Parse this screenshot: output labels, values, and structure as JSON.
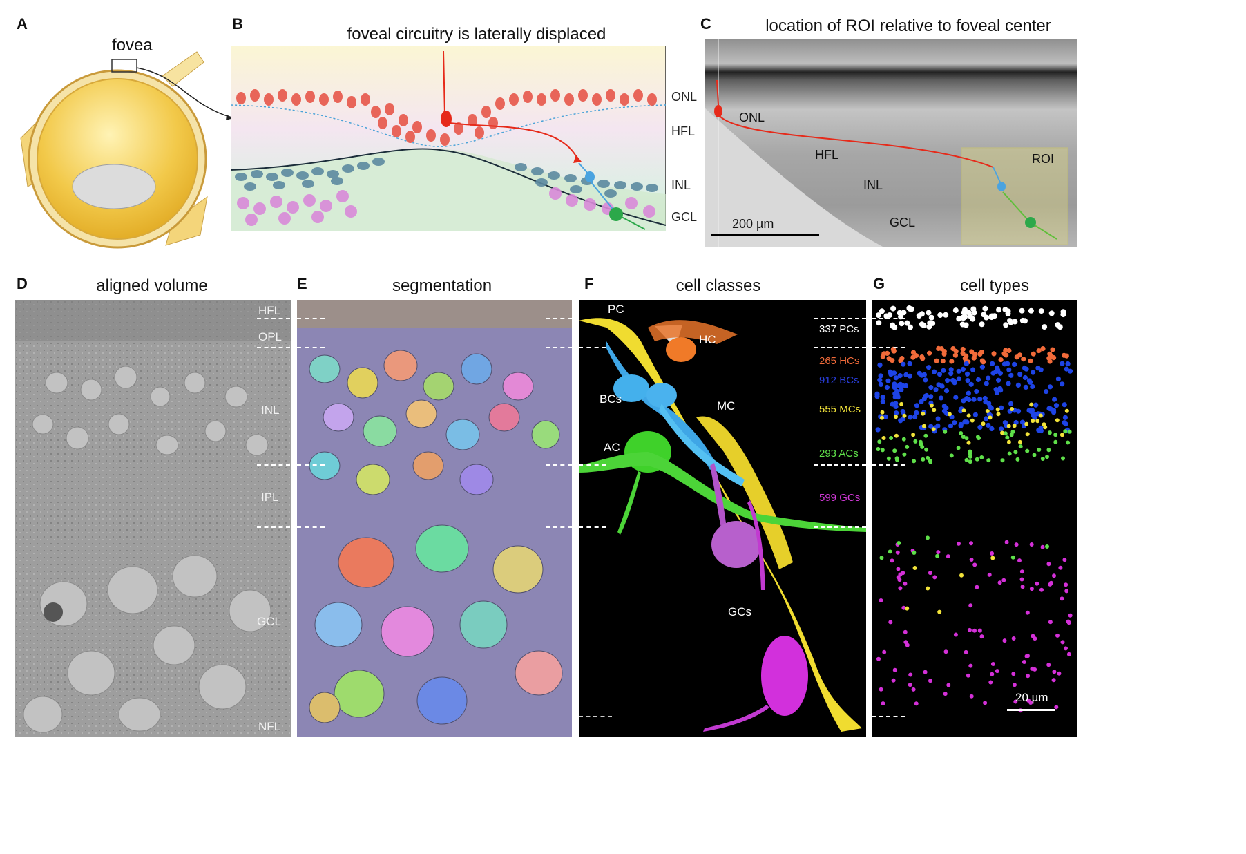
{
  "panels": {
    "A": {
      "letter": "A",
      "title": "fovea"
    },
    "B": {
      "letter": "B",
      "title": "foveal circuitry is laterally displaced",
      "layers": [
        "ONL",
        "HFL",
        "INL",
        "GCL"
      ]
    },
    "C": {
      "letter": "C",
      "title": "location of ROI relative to foveal center",
      "labels": {
        "onl": "ONL",
        "hfl": "HFL",
        "inl": "INL",
        "gcl": "GCL",
        "roi": "ROI"
      },
      "scalebar": "200 µm"
    },
    "D": {
      "letter": "D",
      "title": "aligned volume",
      "layers": [
        "HFL",
        "OPL",
        "INL",
        "IPL",
        "GCL",
        "NFL"
      ]
    },
    "E": {
      "letter": "E",
      "title": "segmentation"
    },
    "F": {
      "letter": "F",
      "title": "cell classes",
      "cells": {
        "pc": "PC",
        "hc": "HC",
        "bcs": "BCs",
        "mc": "MC",
        "ac": "AC",
        "gcs": "GCs"
      },
      "counts": [
        {
          "text": "337 PCs",
          "color": "#ffffff"
        },
        {
          "text": "265 HCs",
          "color": "#f26b3a"
        },
        {
          "text": "912 BCs",
          "color": "#2a3fe0"
        },
        {
          "text": "555 MCs",
          "color": "#f2e33a"
        },
        {
          "text": "293 ACs",
          "color": "#5fe04a"
        },
        {
          "text": "599 GCs",
          "color": "#d23ad8"
        }
      ]
    },
    "G": {
      "letter": "G",
      "title": "cell types",
      "scalebar": "20 µm"
    }
  },
  "colors": {
    "pc": "#ffffff",
    "hc": "#f26b3a",
    "bc": "#1e44e6",
    "mc": "#f2e33a",
    "ac": "#5fe04a",
    "gc": "#d430d8",
    "rod_red": "#e7574a",
    "inl_blue": "#5c8aa0",
    "gcl_pink": "#d98ad9"
  }
}
